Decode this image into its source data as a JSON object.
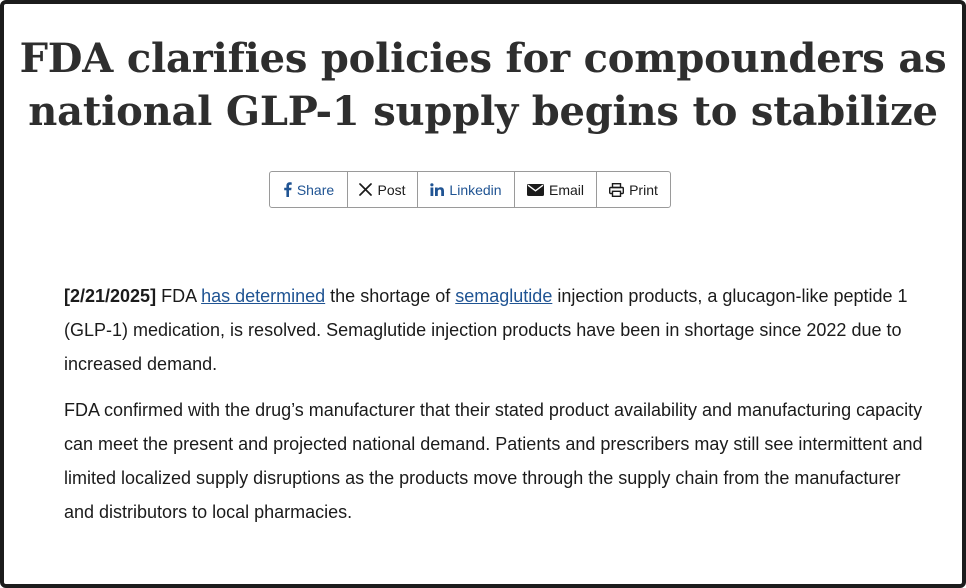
{
  "article": {
    "title": "FDA clarifies policies for compounders as national GLP-1 supply begins to stabilize"
  },
  "share_bar": {
    "buttons": [
      {
        "label": "Share",
        "icon": "facebook-icon"
      },
      {
        "label": "Post",
        "icon": "x-icon"
      },
      {
        "label": "Linkedin",
        "icon": "linkedin-icon"
      },
      {
        "label": "Email",
        "icon": "envelope-icon"
      },
      {
        "label": "Print",
        "icon": "printer-icon"
      }
    ],
    "link_color": "#205493"
  },
  "body": {
    "p1": {
      "date": "[2/21/2025]",
      "t1": " FDA ",
      "link1": "has determined",
      "t2": " the shortage of ",
      "link2": "semaglutide",
      "t3": " injection products, a glucagon-like peptide 1 (GLP-1) medication, is resolved. Semaglutide injection products have been in shortage since 2022 due to increased demand."
    },
    "p2": "FDA confirmed with the drug’s manufacturer that their stated product availability and manufacturing capacity can meet the present and projected national demand. Patients and prescribers may still see intermittent and limited localized supply disruptions as the products move through the supply chain from the manufacturer and distributors to local pharmacies."
  }
}
